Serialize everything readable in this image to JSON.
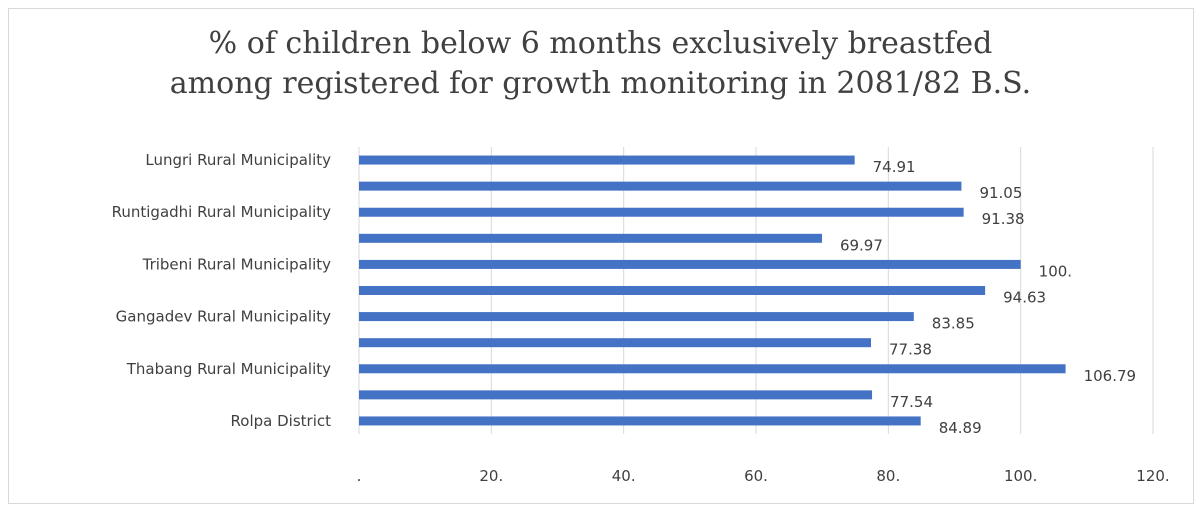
{
  "chart_data": {
    "type": "bar",
    "orientation": "horizontal",
    "title_lines": [
      "% of children below 6 months exclusively breastfed",
      "among registered for growth monitoring in 2081/82 B.S."
    ],
    "categories": [
      "Lungri Rural Municipality",
      "",
      "Runtigadhi Rural Municipality",
      "",
      "Tribeni Rural Municipality",
      "",
      "Gangadev Rural Municipality",
      "",
      "Thabang Rural Municipality",
      "",
      "Rolpa District"
    ],
    "values": [
      74.91,
      91.05,
      91.38,
      69.97,
      100,
      94.63,
      83.85,
      77.38,
      106.79,
      77.54,
      84.89
    ],
    "value_labels": [
      "74.91",
      "91.05",
      "91.38",
      "69.97",
      "100.",
      "94.63",
      "83.85",
      "77.38",
      "106.79",
      "77.54",
      "84.89"
    ],
    "xlim": [
      0,
      120
    ],
    "x_ticks": [
      0,
      20,
      40,
      60,
      80,
      100,
      120
    ],
    "x_tick_labels": [
      ".",
      "20.",
      "40.",
      "60.",
      "80.",
      "100.",
      "120."
    ],
    "bar_color": "#4472c4",
    "gridlines": "vertical",
    "legend": "none"
  }
}
